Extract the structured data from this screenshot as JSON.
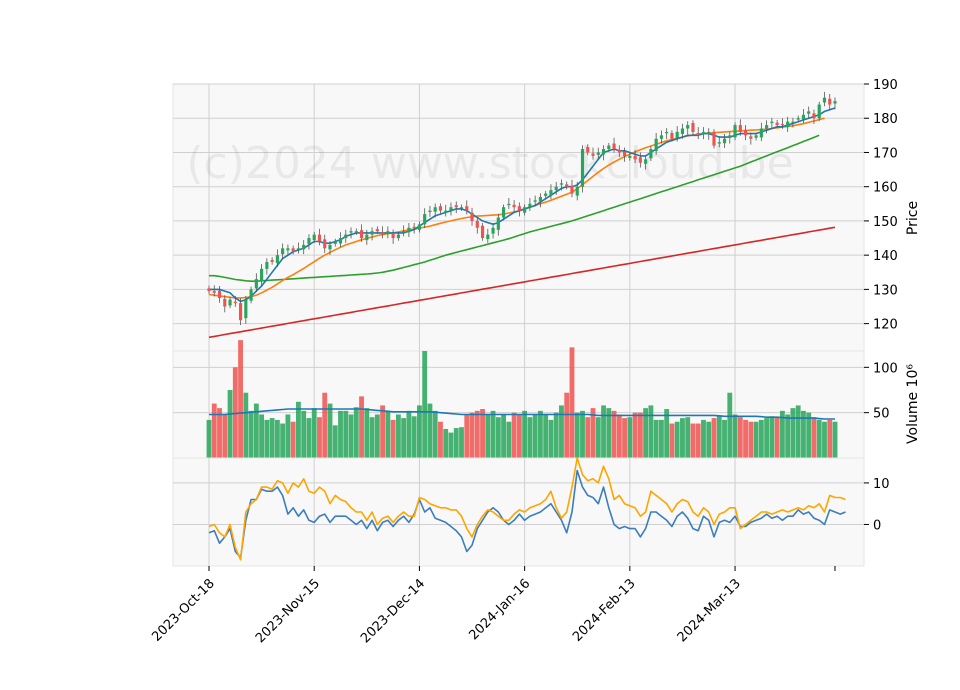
{
  "watermark": "(c)2024 www.stockcloud.be",
  "chart_data": {
    "type": "candlestick",
    "x_tick_labels": [
      "2023-Oct-18",
      "2023-Nov-15",
      "2023-Dec-14",
      "2024-Jan-16",
      "2024-Feb-13",
      "2024-Mar-13"
    ],
    "x_tick_index": [
      0,
      20,
      40,
      60,
      80,
      100
    ],
    "bar_count": 120,
    "price_panel": {
      "ylabel": "Price",
      "ylim": [
        112,
        190
      ],
      "yticks": [
        120,
        130,
        140,
        150,
        160,
        170,
        180,
        190
      ],
      "closes": [
        129.5,
        129,
        127.5,
        125,
        127,
        126,
        121,
        127,
        130,
        133,
        136,
        138,
        138,
        140,
        142,
        142,
        141,
        142,
        143,
        145,
        146,
        144,
        142,
        143,
        144,
        145,
        146,
        147,
        147,
        145,
        146,
        147,
        147,
        146,
        147,
        145,
        146,
        147,
        148,
        148,
        149,
        152,
        153,
        154,
        153,
        153,
        154,
        154,
        154,
        153,
        150,
        148,
        145,
        146,
        148,
        151,
        154,
        155,
        154,
        153,
        154,
        155,
        156,
        157,
        158,
        159,
        160,
        161,
        160,
        158,
        160,
        171,
        170,
        169,
        170,
        171,
        172,
        171,
        170,
        169,
        169,
        168,
        167,
        168,
        171,
        174,
        175,
        176,
        174,
        176,
        177,
        178,
        176,
        175,
        176,
        176,
        172,
        173,
        174,
        175,
        178,
        176,
        175,
        174,
        175,
        177,
        178,
        179,
        178,
        178,
        179,
        179,
        180,
        181,
        182,
        180,
        184,
        186,
        184,
        185
      ],
      "ma_short": [
        130,
        130,
        130,
        129.5,
        129,
        127.5,
        126.5,
        127,
        128,
        129.5,
        131,
        133,
        135,
        137,
        139,
        140,
        141,
        141.5,
        142,
        143,
        144,
        144,
        143.5,
        143.5,
        144,
        144.5,
        145.5,
        146,
        146.5,
        146.5,
        146.5,
        146.5,
        146.5,
        146.5,
        146.5,
        146.5,
        146.5,
        146.5,
        147,
        147.5,
        148.5,
        149.5,
        150.5,
        151.5,
        152,
        152.5,
        153,
        153.5,
        153.5,
        153,
        152,
        151,
        150,
        149.5,
        149,
        149.5,
        150.5,
        151.5,
        152.5,
        153,
        153.5,
        154,
        154.5,
        155.5,
        156.5,
        157.5,
        158.5,
        159.5,
        160,
        160,
        160.5,
        162,
        164,
        166,
        168,
        170,
        170.5,
        171,
        170.5,
        170.5,
        170,
        169.5,
        169,
        169,
        170,
        171,
        172,
        173,
        173.5,
        174,
        174.5,
        175,
        175,
        175,
        175.5,
        175.5,
        175,
        174.5,
        174.5,
        174.5,
        175,
        175.5,
        175.5,
        175.5,
        175.5,
        176,
        176.5,
        177,
        177.5,
        177.5,
        178,
        178.5,
        179,
        179.5,
        180,
        180.5,
        181,
        182,
        182.5,
        183
      ],
      "ma_mid": [
        128.5,
        128.3,
        128.1,
        127.9,
        127.7,
        127.5,
        127.5,
        127.6,
        127.9,
        128.3,
        129,
        129.8,
        130.6,
        131.6,
        132.6,
        133.5,
        134.3,
        135.2,
        136.1,
        137.1,
        138.1,
        139.1,
        140,
        140.8,
        141.6,
        142.3,
        143,
        143.5,
        144,
        144.5,
        144.9,
        145.3,
        145.7,
        146,
        146.3,
        146.5,
        146.8,
        147.1,
        147.4,
        147.6,
        147.9,
        148.2,
        148.5,
        148.9,
        149.3,
        149.7,
        150,
        150.4,
        150.7,
        151,
        151.2,
        151.4,
        151.5,
        151.6,
        151.7,
        151.8,
        152,
        152.3,
        152.6,
        153,
        153.5,
        154,
        154.5,
        155,
        155.5,
        156,
        156.6,
        157.2,
        157.8,
        158.4,
        159.4,
        160.6,
        161.8,
        163,
        164.2,
        165.3,
        166.3,
        167.2,
        168,
        168.8,
        169.5,
        170.2,
        170.8,
        171.4,
        171.9,
        172.4,
        172.9,
        173.4,
        173.8,
        174.2,
        174.5,
        174.8,
        175.1,
        175.3,
        175.5,
        175.6,
        175.8,
        175.9,
        176,
        176.1,
        176.2,
        176.3,
        176.4,
        176.5,
        176.6,
        176.7,
        176.8,
        177,
        177.2,
        177.4,
        177.6,
        177.8,
        178.1,
        178.4,
        178.8,
        179.2,
        179.6,
        180
      ],
      "ma_long": [
        134,
        134,
        133.8,
        133.5,
        133.2,
        132.9,
        132.7,
        132.5,
        132.4,
        132.4,
        132.5,
        132.6,
        132.7,
        132.8,
        132.9,
        133,
        133.1,
        133.2,
        133.3,
        133.4,
        133.5,
        133.6,
        133.7,
        133.8,
        133.9,
        134,
        134.1,
        134.2,
        134.3,
        134.4,
        134.5,
        134.6,
        134.8,
        135,
        135.3,
        135.6,
        136,
        136.4,
        136.8,
        137.2,
        137.6,
        138,
        138.5,
        139,
        139.5,
        140,
        140.4,
        140.8,
        141.2,
        141.6,
        142,
        142.4,
        142.8,
        143.2,
        143.6,
        144,
        144.4,
        144.8,
        145.3,
        145.8,
        146.3,
        146.8,
        147.2,
        147.6,
        148,
        148.4,
        148.8,
        149.2,
        149.6,
        150,
        150.5,
        151,
        151.5,
        152,
        152.5,
        153,
        153.5,
        154,
        154.5,
        155,
        155.5,
        156,
        156.5,
        157,
        157.5,
        158,
        158.5,
        159,
        159.5,
        160,
        160.5,
        161,
        161.5,
        162,
        162.5,
        163,
        163.5,
        164,
        164.5,
        165,
        165.5,
        166,
        166.6,
        167.2,
        167.8,
        168.4,
        169,
        169.6,
        170.2,
        170.8,
        171.4,
        172,
        172.6,
        173.2,
        173.8,
        174.4,
        175
      ],
      "ma_200": [
        116,
        116.27,
        116.54,
        116.81,
        117.08,
        117.35,
        117.62,
        117.89,
        118.16,
        118.43,
        118.7,
        118.97,
        119.24,
        119.51,
        119.78,
        120.05,
        120.32,
        120.59,
        120.86,
        121.13,
        121.4,
        121.67,
        121.94,
        122.21,
        122.48,
        122.75,
        123.02,
        123.29,
        123.56,
        123.83,
        124.1,
        124.37,
        124.64,
        124.91,
        125.18,
        125.45,
        125.72,
        125.99,
        126.26,
        126.53,
        126.8,
        127.07,
        127.34,
        127.61,
        127.88,
        128.15,
        128.42,
        128.69,
        128.96,
        129.23,
        129.5,
        129.77,
        130.04,
        130.31,
        130.58,
        130.85,
        131.12,
        131.39,
        131.66,
        131.93,
        132.2,
        132.47,
        132.74,
        133.01,
        133.28,
        133.55,
        133.82,
        134.09,
        134.36,
        134.63,
        134.9,
        135.17,
        135.44,
        135.71,
        135.98,
        136.25,
        136.52,
        136.79,
        137.06,
        137.33,
        137.6,
        137.87,
        138.14,
        138.41,
        138.68,
        138.95,
        139.22,
        139.49,
        139.76,
        140.03,
        140.3,
        140.57,
        140.84,
        141.11,
        141.38,
        141.65,
        141.92,
        142.19,
        142.46,
        142.73,
        143,
        143.27,
        143.54,
        143.81,
        144.08,
        144.35,
        144.62,
        144.89,
        145.16,
        145.43,
        145.7,
        145.97,
        146.24,
        146.51,
        146.78,
        147.05,
        147.32,
        147.59,
        147.86,
        148.13
      ],
      "colors": {
        "up": "#26a65b",
        "down": "#ef5350",
        "ma_short": "#1f77b4",
        "ma_mid": "#ff7f0e",
        "ma_long": "#2ca02c",
        "ma_200": "#d62728"
      }
    },
    "volume_panel": {
      "ylabel": "Volume  10⁶",
      "ylim": [
        0,
        118
      ],
      "yticks": [
        50,
        100
      ],
      "values": [
        42,
        60,
        55,
        48,
        75,
        100,
        130,
        72,
        52,
        60,
        48,
        42,
        44,
        42,
        38,
        48,
        40,
        62,
        52,
        44,
        55,
        45,
        72,
        60,
        36,
        52,
        52,
        48,
        56,
        68,
        55,
        45,
        48,
        58,
        52,
        42,
        48,
        44,
        52,
        46,
        58,
        118,
        60,
        52,
        40,
        32,
        28,
        33,
        34,
        48,
        50,
        52,
        54,
        48,
        52,
        45,
        48,
        40,
        50,
        48,
        52,
        45,
        48,
        52,
        48,
        42,
        50,
        58,
        72,
        122,
        50,
        52,
        45,
        55,
        45,
        58,
        55,
        52,
        48,
        44,
        45,
        50,
        50,
        55,
        58,
        42,
        42,
        54,
        38,
        40,
        44,
        45,
        38,
        38,
        42,
        40,
        44,
        46,
        42,
        72,
        48,
        45,
        42,
        40,
        40,
        42,
        44,
        46,
        45,
        52,
        48,
        55,
        58,
        52,
        50,
        45,
        42,
        40,
        42,
        40
      ],
      "ma_values": [
        48,
        48,
        48,
        48,
        48.5,
        49,
        49.5,
        50,
        50.5,
        51,
        51.5,
        52,
        52.5,
        53,
        53.5,
        54,
        54,
        54,
        54,
        54,
        54,
        54,
        54,
        54,
        54,
        54,
        54,
        54,
        54,
        54,
        53.5,
        53,
        52.5,
        52,
        51.5,
        51,
        51,
        51,
        51,
        51,
        51,
        51,
        51,
        50.5,
        50,
        49.5,
        49,
        48.5,
        48,
        48,
        48,
        48,
        48,
        48,
        48,
        48,
        48,
        48,
        48,
        48,
        48,
        48,
        48,
        48,
        48,
        48,
        48,
        48,
        48,
        48,
        48,
        48,
        48,
        47.5,
        47,
        47,
        47,
        47,
        47,
        47,
        47,
        47,
        47,
        47,
        47,
        47,
        47,
        47,
        47,
        47,
        47,
        47,
        47,
        47,
        47,
        47,
        47,
        46.5,
        46,
        46,
        46,
        46,
        46,
        46,
        46,
        45.5,
        45,
        45,
        45,
        44.5,
        44,
        44,
        44,
        44,
        44,
        44,
        43.5,
        43,
        43,
        43
      ],
      "colors": {
        "ma": "#1f77b4"
      }
    },
    "indicator_panel": {
      "ylim": [
        -10,
        16
      ],
      "yticks": [
        0,
        10
      ],
      "line_a": [
        -2,
        -1.5,
        -4.5,
        -3,
        -1,
        -6.5,
        -8,
        1,
        6,
        6,
        8.5,
        8,
        8,
        9,
        7,
        2.5,
        4,
        2,
        3.5,
        1,
        0.5,
        2,
        2.5,
        0.5,
        2,
        2,
        2,
        1,
        0,
        1,
        -1,
        1,
        -1.5,
        0.5,
        1,
        -0.5,
        1,
        2,
        0.5,
        2.5,
        6,
        3,
        4,
        1.5,
        1,
        0.5,
        -0.5,
        -1.5,
        -3,
        -6.5,
        -5,
        -1,
        1,
        3,
        4,
        3,
        1,
        0,
        1,
        2.5,
        1,
        2,
        2.5,
        3,
        4,
        5,
        3,
        1,
        -2,
        3,
        13,
        9,
        7,
        6.5,
        5,
        9,
        4,
        0,
        -1,
        -0.5,
        -1,
        -1,
        -3,
        -1,
        3,
        3,
        2,
        1,
        -0.5,
        2,
        3,
        1.5,
        -1,
        -1.5,
        2,
        1,
        -3,
        0.5,
        1,
        0.5,
        2,
        -0.5,
        -0.5,
        0.5,
        1,
        1.5,
        2.5,
        1.5,
        2,
        1,
        2,
        2,
        3.5,
        2.5,
        3,
        1.5,
        1,
        0,
        3.5,
        3,
        2.5,
        3
      ],
      "line_b": [
        -0.5,
        0,
        -2,
        -3,
        0,
        -5.5,
        -8.5,
        3,
        5,
        6,
        9,
        9,
        8.5,
        10.5,
        10,
        7.5,
        10,
        9,
        11,
        8,
        7.5,
        9,
        8,
        5,
        7,
        6,
        5.5,
        4,
        3,
        3,
        1,
        3,
        0,
        1.5,
        2,
        0.5,
        2,
        3,
        2,
        2,
        6.5,
        6,
        5,
        4.5,
        4,
        4,
        3.5,
        3.5,
        2,
        -1,
        -3,
        0,
        2,
        3.5,
        3,
        2,
        1,
        1,
        2.5,
        3.5,
        3,
        4,
        4.5,
        5,
        6,
        8,
        4,
        1.5,
        3,
        9,
        16,
        12,
        10.5,
        11,
        10,
        14,
        11,
        6,
        7,
        5,
        4.5,
        4,
        2,
        3,
        8,
        7,
        6,
        5,
        3,
        5,
        6,
        5.5,
        3,
        2,
        4,
        3,
        0,
        2.5,
        3,
        4,
        4,
        -1,
        0,
        1,
        2,
        3,
        3,
        2.5,
        3,
        3.5,
        3,
        3.5,
        4,
        3.5,
        4.5,
        4,
        5,
        3,
        7,
        6.5,
        6.5,
        6
      ],
      "colors": {
        "line_a": "#3b7dbd",
        "line_b": "#ffa500"
      }
    }
  }
}
